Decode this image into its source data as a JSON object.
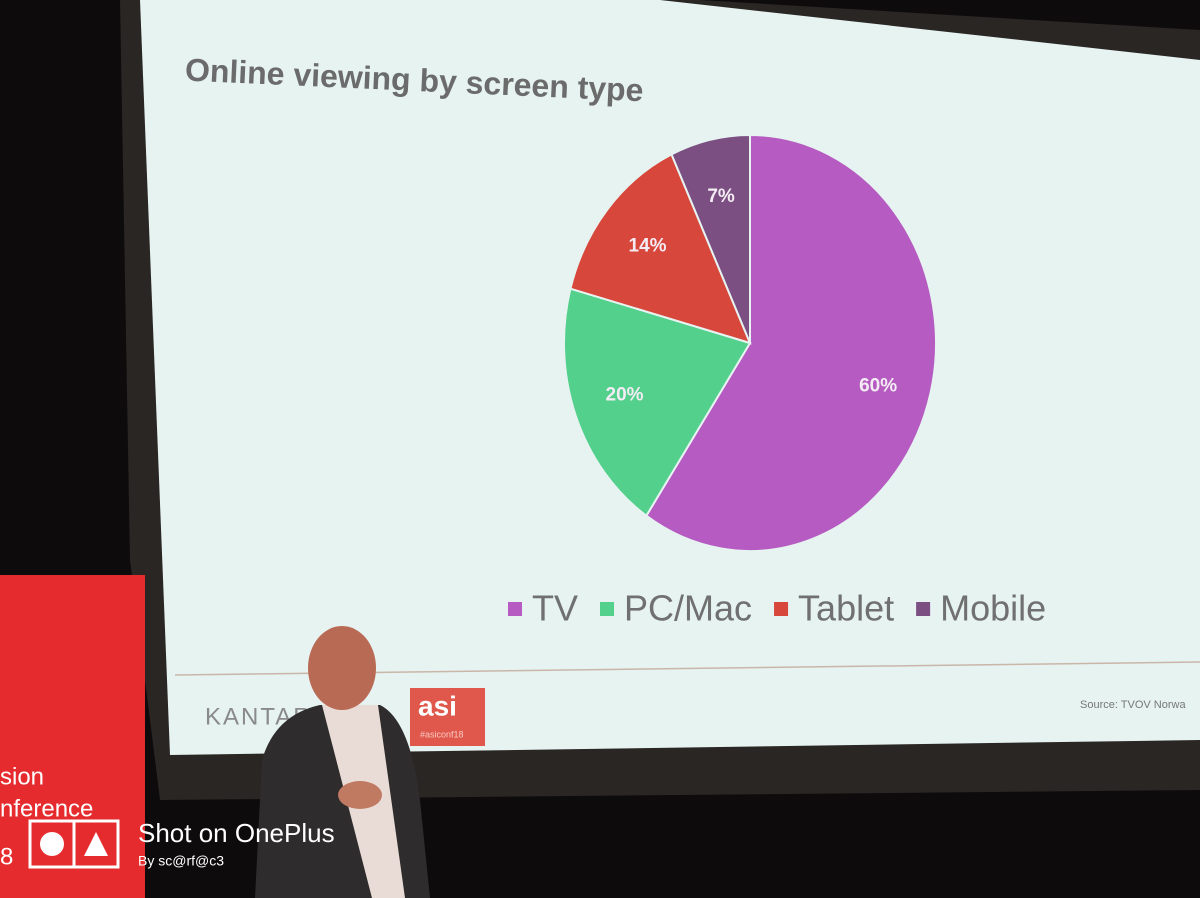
{
  "chart_data": {
    "type": "pie",
    "title": "Online viewing by screen type",
    "categories": [
      "TV",
      "PC/Mac",
      "Tablet",
      "Mobile"
    ],
    "values": [
      60,
      20,
      14,
      7
    ],
    "value_labels": [
      "60%",
      "20%",
      "14%",
      "7%"
    ],
    "colors": [
      "#b65bc1",
      "#52d08c",
      "#d8473b",
      "#7b4f82"
    ],
    "legend": "bottom"
  },
  "slide": {
    "logo": "KANTAR",
    "badge": "asi",
    "hashtag": "#asiconf18",
    "source": "Source: TVOV Norwa"
  },
  "banner": [
    "sion",
    "nference",
    "8"
  ],
  "watermark": {
    "title": "Shot on OnePlus",
    "byline": "By sc@rf@c3"
  }
}
